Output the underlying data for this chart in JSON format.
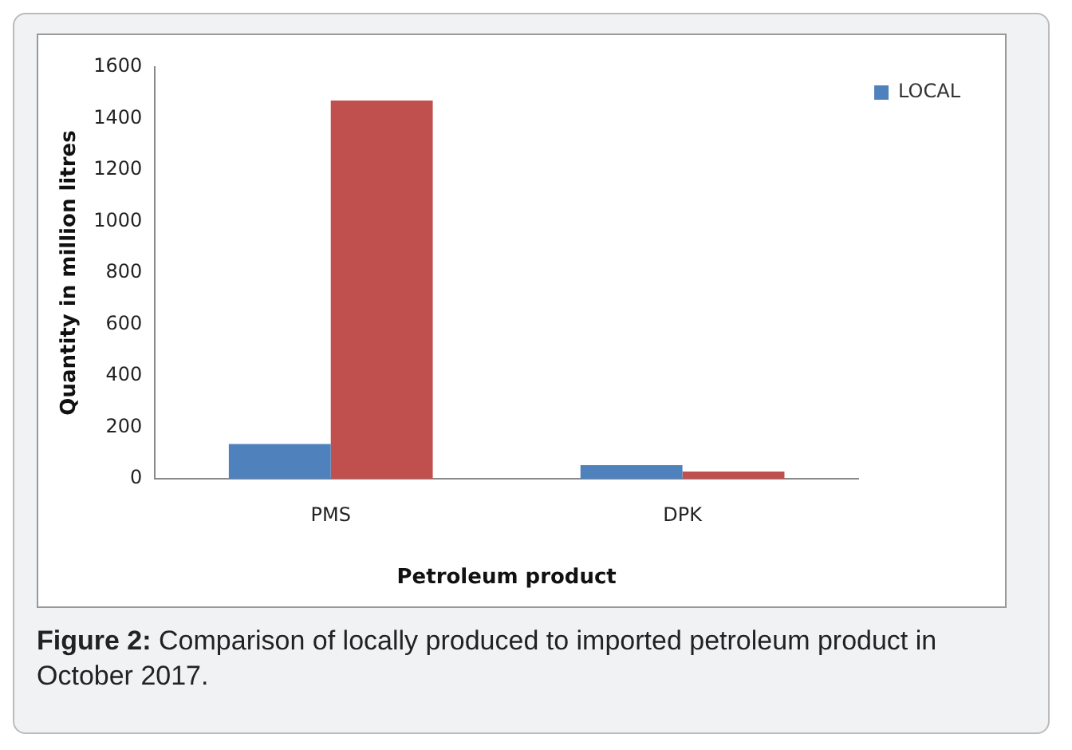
{
  "chart_data": {
    "type": "bar",
    "xlabel": "Petroleum product",
    "ylabel": "Quantity in million litres",
    "categories": [
      "PMS",
      "DPK"
    ],
    "series": [
      {
        "name": "LOCAL",
        "color": "#4f81bd",
        "values": [
          135,
          53
        ]
      },
      {
        "color": "#c0504d",
        "values": [
          1470,
          28
        ]
      }
    ],
    "ylim": [
      0,
      1600
    ],
    "yticks": [
      0,
      200,
      400,
      600,
      800,
      1000,
      1200,
      1400,
      1600
    ],
    "grid": false,
    "legend": "top right",
    "annotations": [
      "Figure 2: Comparison of locally produced to imported petroleum product in October 2017."
    ]
  }
}
